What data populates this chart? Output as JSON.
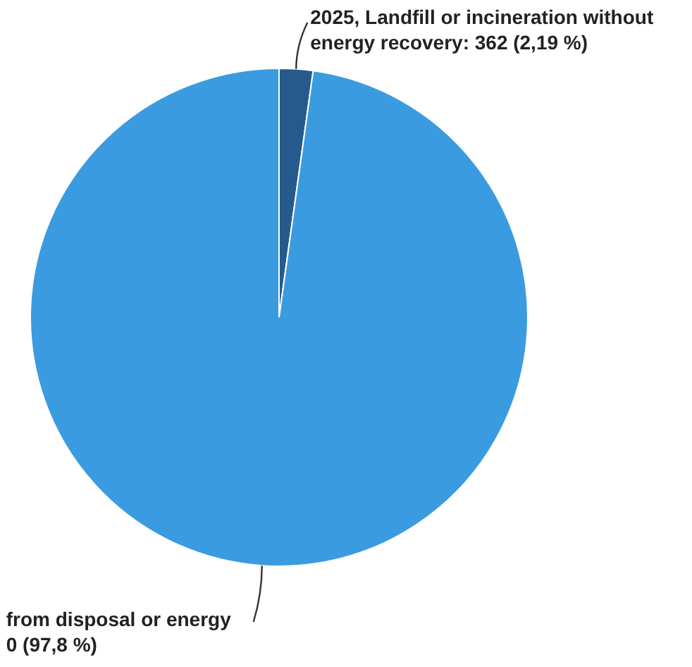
{
  "chart_data": {
    "type": "pie",
    "categories": [
      "2025, Landfill or incineration without energy recovery",
      "from disposal or energy"
    ],
    "values": [
      2.19,
      97.8
    ],
    "colors": [
      "#275a8c",
      "#3b9be0"
    ],
    "value_labels": [
      "362 (2,19 %)",
      "0 (97,8 %)"
    ],
    "legend": false
  }
}
